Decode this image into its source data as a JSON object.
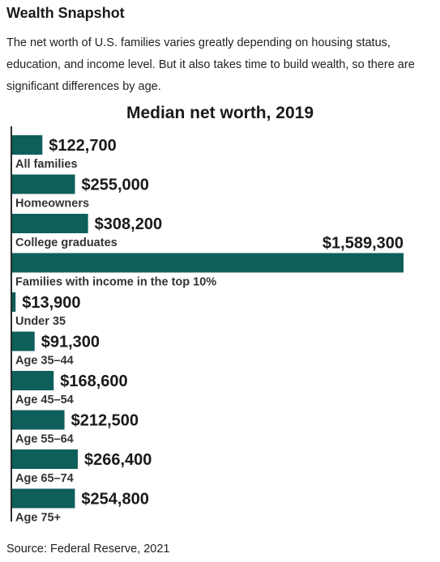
{
  "header": {
    "title": "Wealth Snapshot",
    "intro": "The net worth of U.S. families varies greatly depending on housing status, education, and income level. But it also takes time to build wealth, so there are significant differences by age."
  },
  "chart_data": {
    "type": "bar",
    "orientation": "horizontal",
    "title": "Median net worth, 2019",
    "xlabel": "",
    "ylabel": "",
    "grid": false,
    "bar_color": "#0e5e5a",
    "xlim": [
      0,
      1589300
    ],
    "categories": [
      "All families",
      "Homeowners",
      "College graduates",
      "Families with income in the top 10%",
      "Under 35",
      "Age 35–44",
      "Age 45–54",
      "Age 55–64",
      "Age 65–74",
      "Age 75+"
    ],
    "values": [
      122700,
      255000,
      308200,
      1589300,
      13900,
      91300,
      168600,
      212500,
      266400,
      254800
    ],
    "value_labels": [
      "$122,700",
      "$255,000",
      "$308,200",
      "$1,589,300",
      "$13,900",
      "$91,300",
      "$168,600",
      "$212,500",
      "$266,400",
      "$254,800"
    ]
  },
  "footer": {
    "source": "Source: Federal Reserve, 2021"
  }
}
